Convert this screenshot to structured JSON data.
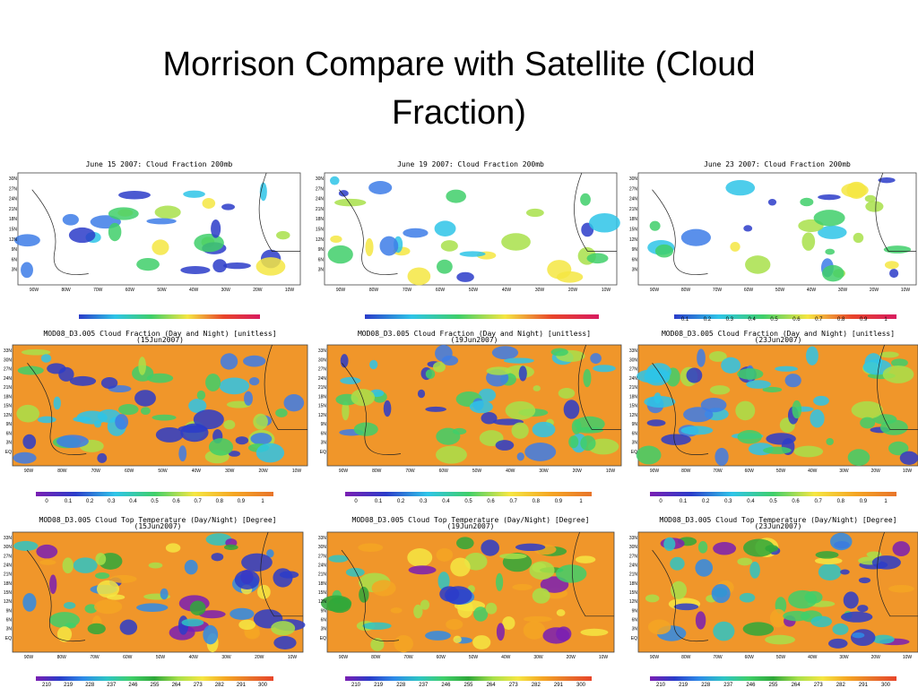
{
  "header": {
    "title_line1": "Morrison Compare with Satellite (Cloud",
    "title_line2": "Fraction)"
  },
  "rows": [
    {
      "lat": [
        "30N",
        "27N",
        "24N",
        "21N",
        "18N",
        "15N",
        "12N",
        "9N",
        "6N",
        "3N"
      ],
      "lon": [
        "90W",
        "80W",
        "70W",
        "60W",
        "50W",
        "40W",
        "30W",
        "20W",
        "10W"
      ],
      "colorbar": [
        "0.1",
        "0.2",
        "0.3",
        "0.4",
        "0.5",
        "0.6",
        "0.7",
        "0.8",
        "0.9",
        "1"
      ],
      "panels": [
        {
          "title": "June 15 2007: Cloud Fraction 200mb"
        },
        {
          "title": "June 19 2007: Cloud Fraction 200mb"
        },
        {
          "title": "June 23 2007: Cloud Fraction 200mb"
        }
      ]
    },
    {
      "lat": [
        "33N",
        "30N",
        "27N",
        "24N",
        "21N",
        "18N",
        "15N",
        "12N",
        "9N",
        "6N",
        "3N",
        "EQ"
      ],
      "lon": [
        "90W",
        "80W",
        "70W",
        "60W",
        "50W",
        "40W",
        "30W",
        "20W",
        "10W"
      ],
      "colorbar": [
        "0",
        "0.1",
        "0.2",
        "0.3",
        "0.4",
        "0.5",
        "0.6",
        "0.7",
        "0.8",
        "0.9",
        "1"
      ],
      "panels": [
        {
          "title": "MOD08_D3.005 Cloud Fraction (Day and Night) [unitless]",
          "date": "(15Jun2007)"
        },
        {
          "title": "MOD08_D3.005 Cloud Fraction (Day and Night) [unitless]",
          "date": "(19Jun2007)"
        },
        {
          "title": "MOD08_D3.005 Cloud Fraction (Day and Night) [unitless]",
          "date": "(23Jun2007)"
        }
      ]
    },
    {
      "lat": [
        "33N",
        "30N",
        "27N",
        "24N",
        "21N",
        "18N",
        "15N",
        "12N",
        "9N",
        "6N",
        "3N",
        "EQ"
      ],
      "lon": [
        "90W",
        "80W",
        "70W",
        "60W",
        "50W",
        "40W",
        "30W",
        "20W",
        "10W"
      ],
      "colorbar": [
        "210",
        "219",
        "228",
        "237",
        "246",
        "255",
        "264",
        "273",
        "282",
        "291",
        "300"
      ],
      "panels": [
        {
          "title": "MOD08_D3.005 Cloud Top Temperature (Day/Night) [Degree]",
          "date": "(15Jun2007)"
        },
        {
          "title": "MOD08_D3.005 Cloud Top Temperature (Day/Night) [Degree]",
          "date": "(19Jun2007)"
        },
        {
          "title": "MOD08_D3.005 Cloud Top Temperature (Day/Night) [Degree]",
          "date": "(23Jun2007)"
        }
      ]
    }
  ]
}
